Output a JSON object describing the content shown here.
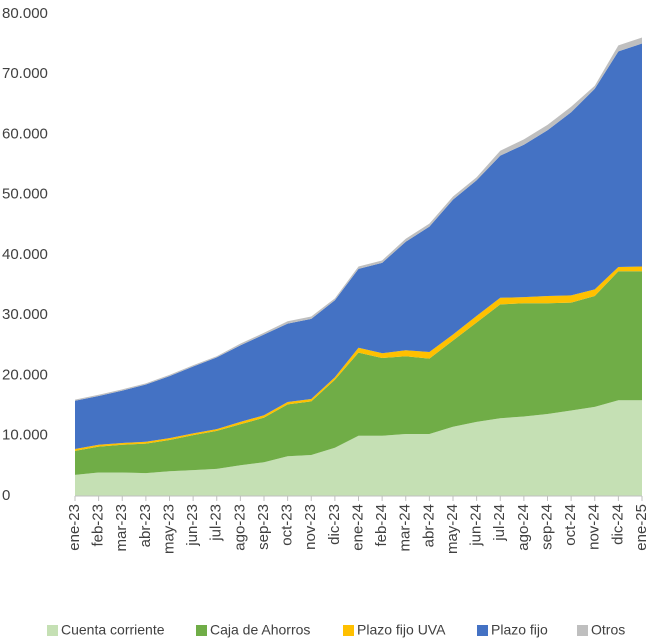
{
  "chart_data": {
    "type": "stacked-area",
    "categories": [
      "ene-23",
      "feb-23",
      "mar-23",
      "abr-23",
      "may-23",
      "jun-23",
      "jul-23",
      "ago-23",
      "sep-23",
      "oct-23",
      "nov-23",
      "dic-23",
      "ene-24",
      "feb-24",
      "mar-24",
      "abr-24",
      "may-24",
      "jun-24",
      "jul-24",
      "ago-24",
      "sep-24",
      "oct-24",
      "nov-24",
      "dic-24",
      "ene-25"
    ],
    "series": [
      {
        "name": "Cuenta corriente",
        "color": "#c5e0b4",
        "values": [
          3500,
          3900,
          3900,
          3800,
          4100,
          4300,
          4500,
          5100,
          5600,
          6600,
          6800,
          8000,
          10000,
          10000,
          10300,
          10300,
          11500,
          12300,
          12900,
          13200,
          13600,
          14200,
          14800,
          15900,
          15900
        ]
      },
      {
        "name": "Caja de Ahorros",
        "color": "#70ad47",
        "values": [
          4000,
          4300,
          4600,
          4900,
          5200,
          5800,
          6300,
          6800,
          7400,
          8600,
          8900,
          11300,
          13800,
          12900,
          12900,
          12500,
          14300,
          16500,
          18900,
          18800,
          18400,
          17900,
          18400,
          21400,
          21400
        ]
      },
      {
        "name": "Plazo fijo UVA",
        "color": "#ffc000",
        "values": [
          300,
          300,
          300,
          300,
          300,
          300,
          300,
          400,
          400,
          400,
          400,
          400,
          800,
          800,
          1000,
          1100,
          1000,
          1100,
          1100,
          1000,
          1200,
          1200,
          1100,
          700,
          800
        ]
      },
      {
        "name": "Plazo fijo",
        "color": "#4472c4",
        "values": [
          8000,
          8100,
          8700,
          9500,
          10300,
          11100,
          11900,
          12700,
          13400,
          13000,
          13300,
          12800,
          13100,
          15000,
          18000,
          20800,
          22400,
          22500,
          23600,
          25300,
          27500,
          30400,
          33300,
          35800,
          37000
        ]
      },
      {
        "name": "Otros",
        "color": "#bfbfbf",
        "values": [
          200,
          200,
          200,
          200,
          200,
          200,
          200,
          300,
          300,
          400,
          400,
          300,
          400,
          400,
          500,
          500,
          500,
          500,
          800,
          900,
          900,
          900,
          500,
          1000,
          1000
        ]
      }
    ],
    "ylim": [
      0,
      80000
    ],
    "yticks": [
      0,
      {
        "value": 10000,
        "label": "10.000"
      },
      {
        "value": 20000,
        "label": "20.000"
      },
      {
        "value": 30000,
        "label": "30.000"
      },
      {
        "value": 40000,
        "label": "40.000"
      },
      {
        "value": 50000,
        "label": "50.000"
      },
      {
        "value": 60000,
        "label": "60.000"
      },
      {
        "value": 70000,
        "label": "70.000"
      },
      {
        "value": 80000,
        "label": "80.000"
      }
    ],
    "legend": "bottom"
  }
}
